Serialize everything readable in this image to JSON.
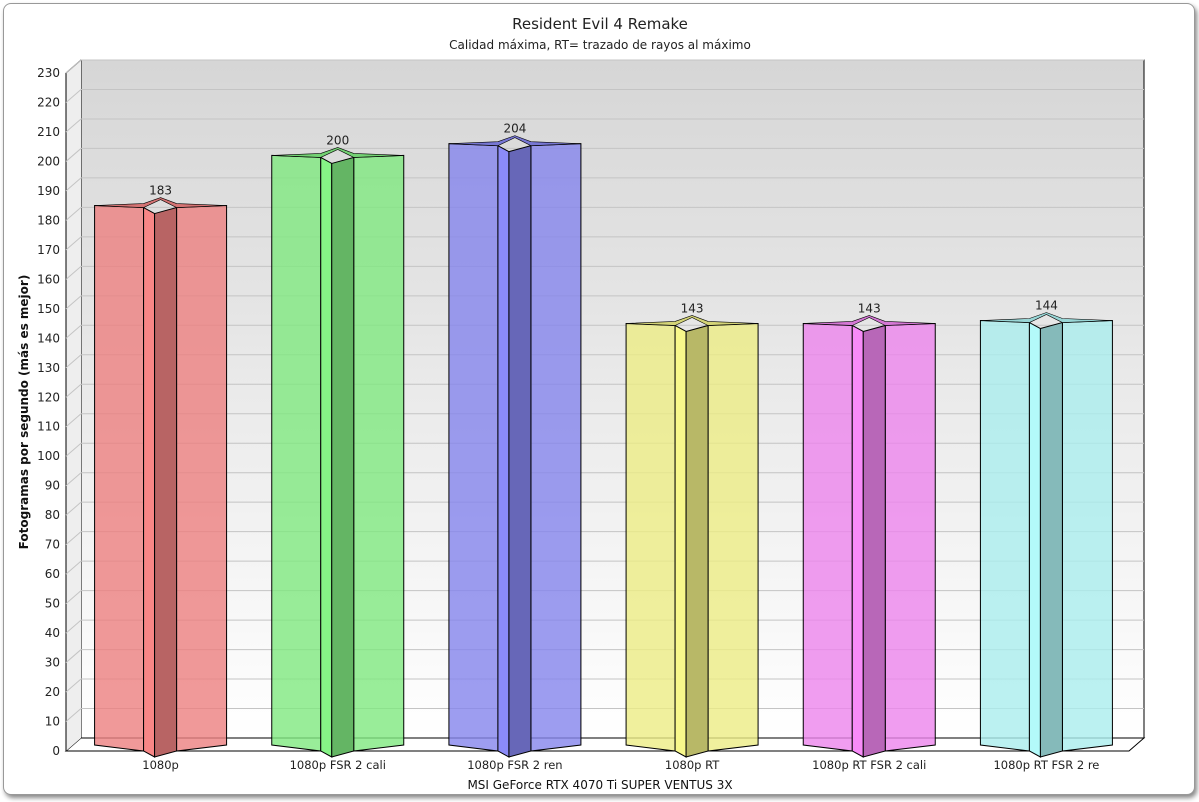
{
  "chart_data": {
    "type": "bar",
    "title": "Resident Evil 4 Remake",
    "subtitle": "Calidad máxima, RT= trazado de rayos al máximo",
    "xlabel": "MSI GeForce RTX 4070 Ti SUPER VENTUS 3X",
    "ylabel": "Fotogramas por segundo (más es mejor)",
    "ylim": [
      0,
      230
    ],
    "ytick_step": 10,
    "grid": true,
    "categories": [
      "1080p",
      "1080p FSR 2 cali",
      "1080p FSR 2 ren",
      "1080p RT",
      "1080p RT FSR 2 cali",
      "1080p RT FSR 2 re"
    ],
    "values": [
      183,
      200,
      204,
      143,
      143,
      144
    ],
    "colors": [
      "#ec8080",
      "#80e880",
      "#8484ec",
      "#ecec84",
      "#ec84ec",
      "#aaeeee"
    ]
  }
}
